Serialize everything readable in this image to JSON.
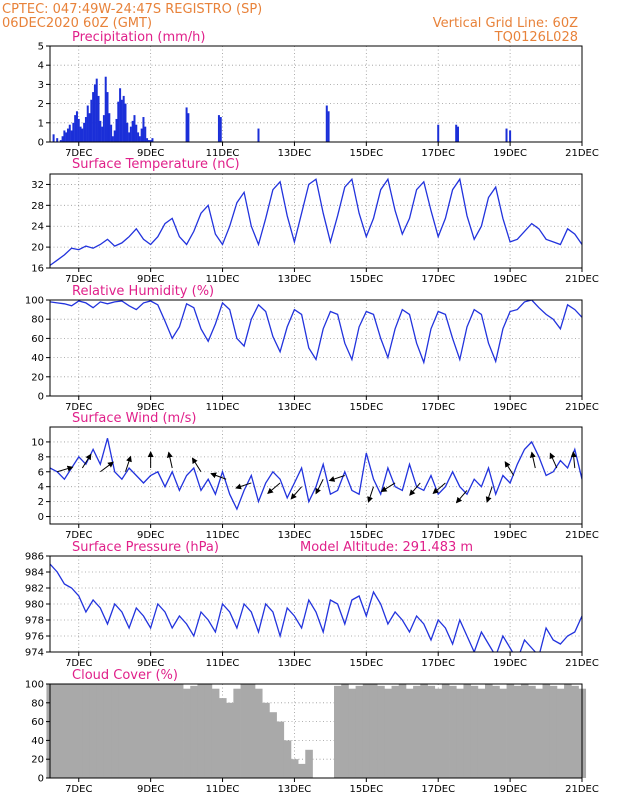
{
  "header": {
    "left_line1": "CPTEC:   047:49W-24:47S   REGISTRO (SP)",
    "left_line2": "06DEC2020 60Z (GMT)",
    "right_line1": "Vertical Grid Line: 60Z",
    "right_line2": "TQ0126L028"
  },
  "colors": {
    "header": "#e8823a",
    "title": "#e0208a",
    "line": "#2233dd",
    "bar": "#1b2fd8",
    "cloud": "#a9a9a9"
  },
  "x_axis": {
    "tick_labels": [
      "7DEC",
      "9DEC",
      "11DEC",
      "13DEC",
      "15DEC",
      "17DEC",
      "19DEC",
      "21DEC"
    ],
    "tick_days": [
      7,
      9,
      11,
      13,
      15,
      17,
      19,
      21
    ],
    "range_days": [
      6.2,
      21
    ]
  },
  "chart_data": [
    {
      "id": "precip",
      "type": "bar",
      "title": "Precipitation (mm/h)",
      "ylim": [
        0,
        5
      ],
      "yticks": [
        0,
        1,
        2,
        3,
        4,
        5
      ],
      "x": [
        6.3,
        6.4,
        6.5,
        6.55,
        6.6,
        6.65,
        6.7,
        6.75,
        6.8,
        6.85,
        6.9,
        6.95,
        7.0,
        7.05,
        7.1,
        7.15,
        7.2,
        7.25,
        7.3,
        7.35,
        7.4,
        7.45,
        7.5,
        7.55,
        7.6,
        7.65,
        7.7,
        7.75,
        7.8,
        7.85,
        7.9,
        7.95,
        8.0,
        8.05,
        8.1,
        8.15,
        8.2,
        8.25,
        8.3,
        8.35,
        8.4,
        8.45,
        8.5,
        8.55,
        8.6,
        8.65,
        8.7,
        8.75,
        8.8,
        8.85,
        8.9,
        8.95,
        9.0,
        9.05,
        10.0,
        10.05,
        10.9,
        10.95,
        12.0,
        13.9,
        13.95,
        17.0,
        17.5,
        17.55,
        18.9,
        19.0
      ],
      "values": [
        0.4,
        0.2,
        0.1,
        0.3,
        0.6,
        0.5,
        0.7,
        0.9,
        0.6,
        1.0,
        1.4,
        1.6,
        1.2,
        0.8,
        0.7,
        1.0,
        1.3,
        1.9,
        1.5,
        2.2,
        2.6,
        3.0,
        3.3,
        2.4,
        1.1,
        0.8,
        1.4,
        3.4,
        2.6,
        1.5,
        0.9,
        0.3,
        0.6,
        1.2,
        2.1,
        2.8,
        2.2,
        2.4,
        2.0,
        1.0,
        0.5,
        0.8,
        1.1,
        1.4,
        0.9,
        0.5,
        0.3,
        0.7,
        1.3,
        0.8,
        0.2,
        0.1,
        0.1,
        0.2,
        1.8,
        1.5,
        1.4,
        1.3,
        0.7,
        1.9,
        1.6,
        0.9,
        0.9,
        0.8,
        0.7,
        0.6
      ]
    },
    {
      "id": "temp",
      "type": "line",
      "title": "Surface Temperature (nC)",
      "ylim": [
        16,
        34
      ],
      "yticks": [
        16,
        20,
        24,
        28,
        32
      ],
      "x": [
        6.2,
        6.4,
        6.6,
        6.8,
        7.0,
        7.2,
        7.4,
        7.6,
        7.8,
        8.0,
        8.2,
        8.4,
        8.6,
        8.8,
        9.0,
        9.2,
        9.4,
        9.6,
        9.8,
        10.0,
        10.2,
        10.4,
        10.6,
        10.8,
        11.0,
        11.2,
        11.4,
        11.6,
        11.8,
        12.0,
        12.2,
        12.4,
        12.6,
        12.8,
        13.0,
        13.2,
        13.4,
        13.6,
        13.8,
        14.0,
        14.2,
        14.4,
        14.6,
        14.8,
        15.0,
        15.2,
        15.4,
        15.6,
        15.8,
        16.0,
        16.2,
        16.4,
        16.6,
        16.8,
        17.0,
        17.2,
        17.4,
        17.6,
        17.8,
        18.0,
        18.2,
        18.4,
        18.6,
        18.8,
        19.0,
        19.2,
        19.4,
        19.6,
        19.8,
        20.0,
        20.2,
        20.4,
        20.6,
        20.8,
        21.0
      ],
      "values": [
        16.5,
        17.5,
        18.5,
        19.8,
        19.5,
        20.2,
        19.8,
        20.5,
        21.5,
        20.2,
        20.8,
        22.0,
        23.5,
        21.5,
        20.5,
        22.0,
        24.5,
        25.5,
        22.0,
        20.5,
        23.0,
        26.5,
        28.0,
        22.5,
        20.5,
        24.0,
        28.5,
        30.5,
        24.0,
        20.5,
        25.5,
        31.0,
        32.5,
        26.0,
        21.0,
        26.5,
        32.0,
        33.0,
        26.5,
        21.0,
        26.0,
        31.5,
        33.0,
        26.5,
        22.0,
        25.5,
        31.0,
        33.0,
        27.0,
        22.5,
        25.5,
        31.0,
        32.5,
        27.0,
        22.0,
        25.5,
        31.0,
        33.0,
        26.0,
        21.5,
        24.0,
        29.5,
        31.5,
        25.5,
        21.0,
        21.5,
        23.0,
        24.5,
        23.5,
        21.5,
        21.0,
        20.5,
        23.5,
        22.5,
        20.5
      ]
    },
    {
      "id": "rh",
      "type": "line",
      "title": "Relative Humidity (%)",
      "ylim": [
        0,
        100
      ],
      "yticks": [
        0,
        20,
        40,
        60,
        80,
        100
      ],
      "x": [
        6.2,
        6.4,
        6.6,
        6.8,
        7.0,
        7.2,
        7.4,
        7.6,
        7.8,
        8.0,
        8.2,
        8.4,
        8.6,
        8.8,
        9.0,
        9.2,
        9.4,
        9.6,
        9.8,
        10.0,
        10.2,
        10.4,
        10.6,
        10.8,
        11.0,
        11.2,
        11.4,
        11.6,
        11.8,
        12.0,
        12.2,
        12.4,
        12.6,
        12.8,
        13.0,
        13.2,
        13.4,
        13.6,
        13.8,
        14.0,
        14.2,
        14.4,
        14.6,
        14.8,
        15.0,
        15.2,
        15.4,
        15.6,
        15.8,
        16.0,
        16.2,
        16.4,
        16.6,
        16.8,
        17.0,
        17.2,
        17.4,
        17.6,
        17.8,
        18.0,
        18.2,
        18.4,
        18.6,
        18.8,
        19.0,
        19.2,
        19.4,
        19.6,
        19.8,
        20.0,
        20.2,
        20.4,
        20.6,
        20.8,
        21.0
      ],
      "values": [
        98,
        97,
        96,
        94,
        99,
        97,
        92,
        98,
        96,
        98,
        99,
        94,
        90,
        97,
        99,
        95,
        78,
        60,
        72,
        96,
        92,
        70,
        57,
        75,
        97,
        90,
        60,
        52,
        80,
        95,
        88,
        62,
        46,
        72,
        90,
        85,
        50,
        38,
        70,
        88,
        85,
        55,
        38,
        72,
        88,
        85,
        60,
        40,
        70,
        90,
        85,
        55,
        35,
        70,
        88,
        85,
        60,
        38,
        72,
        90,
        85,
        55,
        36,
        70,
        88,
        90,
        98,
        100,
        92,
        85,
        80,
        70,
        95,
        90,
        82
      ]
    },
    {
      "id": "wind",
      "type": "line",
      "title": "Surface Wind (m/s)",
      "ylim": [
        -1,
        12
      ],
      "yticks": [
        0,
        2,
        4,
        6,
        8,
        10
      ],
      "x": [
        6.2,
        6.4,
        6.6,
        6.8,
        7.0,
        7.2,
        7.4,
        7.6,
        7.8,
        8.0,
        8.2,
        8.4,
        8.6,
        8.8,
        9.0,
        9.2,
        9.4,
        9.6,
        9.8,
        10.0,
        10.2,
        10.4,
        10.6,
        10.8,
        11.0,
        11.2,
        11.4,
        11.6,
        11.8,
        12.0,
        12.2,
        12.4,
        12.6,
        12.8,
        13.0,
        13.2,
        13.4,
        13.6,
        13.8,
        14.0,
        14.2,
        14.4,
        14.6,
        14.8,
        15.0,
        15.2,
        15.4,
        15.6,
        15.8,
        16.0,
        16.2,
        16.4,
        16.6,
        16.8,
        17.0,
        17.2,
        17.4,
        17.6,
        17.8,
        18.0,
        18.2,
        18.4,
        18.6,
        18.8,
        19.0,
        19.2,
        19.4,
        19.6,
        19.8,
        20.0,
        20.2,
        20.4,
        20.6,
        20.8,
        21.0
      ],
      "values": [
        6.5,
        6.0,
        5.0,
        6.5,
        8.0,
        7.0,
        9.0,
        7.0,
        10.5,
        6.0,
        5.0,
        6.5,
        5.5,
        4.5,
        5.5,
        6.0,
        4.0,
        6.0,
        3.5,
        5.5,
        6.5,
        3.5,
        5.0,
        3.0,
        6.0,
        3.0,
        1.0,
        3.5,
        5.5,
        2.0,
        4.5,
        6.0,
        5.0,
        2.5,
        4.5,
        6.5,
        2.0,
        4.0,
        7.0,
        3.0,
        3.5,
        6.0,
        3.5,
        3.0,
        8.5,
        5.0,
        3.0,
        6.5,
        4.0,
        3.5,
        7.0,
        4.0,
        3.5,
        5.5,
        3.0,
        4.0,
        6.0,
        4.0,
        3.0,
        5.0,
        4.0,
        6.5,
        3.0,
        5.5,
        4.5,
        7.0,
        9.0,
        10.0,
        8.0,
        5.5,
        6.0,
        7.5,
        6.5,
        9.0,
        5.0
      ],
      "arrows_note": "wind direction vectors",
      "arrow_x": [
        6.4,
        7.1,
        7.6,
        8.3,
        9.0,
        9.6,
        10.4,
        11.1,
        11.8,
        12.6,
        13.2,
        13.8,
        14.4,
        15.2,
        15.8,
        16.5,
        17.2,
        17.8,
        18.5,
        19.1,
        19.7,
        20.3,
        20.8
      ],
      "arrow_y": [
        6.0,
        6.5,
        6.0,
        6.0,
        6.5,
        6.5,
        6.0,
        5.0,
        4.5,
        4.5,
        4.0,
        5.0,
        5.5,
        4.0,
        4.5,
        4.5,
        4.5,
        3.5,
        4.0,
        5.5,
        6.5,
        6.5,
        6.5
      ],
      "arrow_dx": [
        1.0,
        0.5,
        0.8,
        0.3,
        0.0,
        -0.2,
        -0.5,
        -0.8,
        -0.9,
        -0.7,
        -0.6,
        -0.4,
        -0.9,
        -0.3,
        -0.8,
        -0.6,
        -0.7,
        -0.6,
        -0.3,
        -0.5,
        -0.2,
        -0.4,
        -0.1
      ],
      "arrow_dy": [
        -0.3,
        -0.8,
        -0.6,
        -0.9,
        -1.0,
        -0.9,
        -0.8,
        -0.3,
        0.3,
        0.6,
        0.7,
        0.8,
        0.3,
        0.9,
        0.5,
        0.7,
        0.6,
        0.7,
        0.9,
        -0.8,
        -0.9,
        -0.9,
        -1.0
      ]
    },
    {
      "id": "pressure",
      "type": "line",
      "title": "Surface Pressure (hPa)",
      "annotation": "Model Altitude:  291.483  m",
      "ylim": [
        974,
        986
      ],
      "yticks": [
        974,
        976,
        978,
        980,
        982,
        984,
        986
      ],
      "x": [
        6.2,
        6.4,
        6.6,
        6.8,
        7.0,
        7.2,
        7.4,
        7.6,
        7.8,
        8.0,
        8.2,
        8.4,
        8.6,
        8.8,
        9.0,
        9.2,
        9.4,
        9.6,
        9.8,
        10.0,
        10.2,
        10.4,
        10.6,
        10.8,
        11.0,
        11.2,
        11.4,
        11.6,
        11.8,
        12.0,
        12.2,
        12.4,
        12.6,
        12.8,
        13.0,
        13.2,
        13.4,
        13.6,
        13.8,
        14.0,
        14.2,
        14.4,
        14.6,
        14.8,
        15.0,
        15.2,
        15.4,
        15.6,
        15.8,
        16.0,
        16.2,
        16.4,
        16.6,
        16.8,
        17.0,
        17.2,
        17.4,
        17.6,
        17.8,
        18.0,
        18.2,
        18.4,
        18.6,
        18.8,
        19.0,
        19.2,
        19.4,
        19.6,
        19.8,
        20.0,
        20.2,
        20.4,
        20.6,
        20.8,
        21.0
      ],
      "values": [
        985.0,
        984.0,
        982.5,
        982.0,
        981.0,
        979.0,
        980.5,
        979.5,
        977.5,
        980.0,
        979.0,
        977.0,
        979.5,
        978.5,
        977.0,
        980.0,
        979.0,
        977.0,
        978.5,
        977.5,
        976.0,
        979.0,
        978.0,
        976.5,
        980.0,
        979.0,
        977.0,
        980.0,
        979.0,
        976.5,
        980.0,
        979.0,
        976.0,
        979.5,
        978.5,
        977.0,
        980.5,
        979.0,
        976.5,
        980.5,
        980.0,
        977.5,
        980.5,
        981.0,
        978.5,
        981.5,
        980.0,
        977.5,
        979.0,
        978.0,
        976.5,
        978.5,
        977.5,
        975.5,
        978.0,
        977.0,
        975.0,
        978.0,
        976.0,
        974.0,
        976.5,
        975.0,
        973.5,
        976.0,
        974.5,
        973.0,
        975.5,
        974.5,
        973.5,
        977.0,
        975.5,
        975.0,
        976.0,
        976.5,
        978.5
      ]
    },
    {
      "id": "cloud",
      "type": "bar",
      "title": "Cloud Cover (%)",
      "ylim": [
        0,
        100
      ],
      "yticks": [
        0,
        20,
        40,
        60,
        80,
        100
      ],
      "x": [
        6.2,
        6.4,
        6.6,
        6.8,
        7.0,
        7.2,
        7.4,
        7.6,
        7.8,
        8.0,
        8.2,
        8.4,
        8.6,
        8.8,
        9.0,
        9.2,
        9.4,
        9.6,
        9.8,
        10.0,
        10.2,
        10.4,
        10.6,
        10.8,
        11.0,
        11.2,
        11.4,
        11.6,
        11.8,
        12.0,
        12.2,
        12.4,
        12.6,
        12.8,
        13.0,
        13.2,
        13.4,
        13.6,
        13.8,
        14.0,
        14.2,
        14.4,
        14.6,
        14.8,
        15.0,
        15.2,
        15.4,
        15.6,
        15.8,
        16.0,
        16.2,
        16.4,
        16.6,
        16.8,
        17.0,
        17.2,
        17.4,
        17.6,
        17.8,
        18.0,
        18.2,
        18.4,
        18.6,
        18.8,
        19.0,
        19.2,
        19.4,
        19.6,
        19.8,
        20.0,
        20.2,
        20.4,
        20.6,
        20.8,
        21.0
      ],
      "values": [
        100,
        100,
        100,
        100,
        100,
        100,
        100,
        100,
        100,
        100,
        100,
        100,
        100,
        100,
        100,
        100,
        100,
        100,
        100,
        95,
        98,
        100,
        100,
        95,
        85,
        80,
        95,
        100,
        100,
        95,
        80,
        70,
        60,
        40,
        20,
        15,
        30,
        0,
        0,
        0,
        98,
        100,
        95,
        98,
        100,
        100,
        98,
        95,
        98,
        100,
        95,
        98,
        100,
        98,
        95,
        100,
        98,
        95,
        100,
        98,
        95,
        100,
        98,
        95,
        100,
        98,
        100,
        98,
        95,
        100,
        98,
        95,
        100,
        98,
        95
      ]
    }
  ]
}
